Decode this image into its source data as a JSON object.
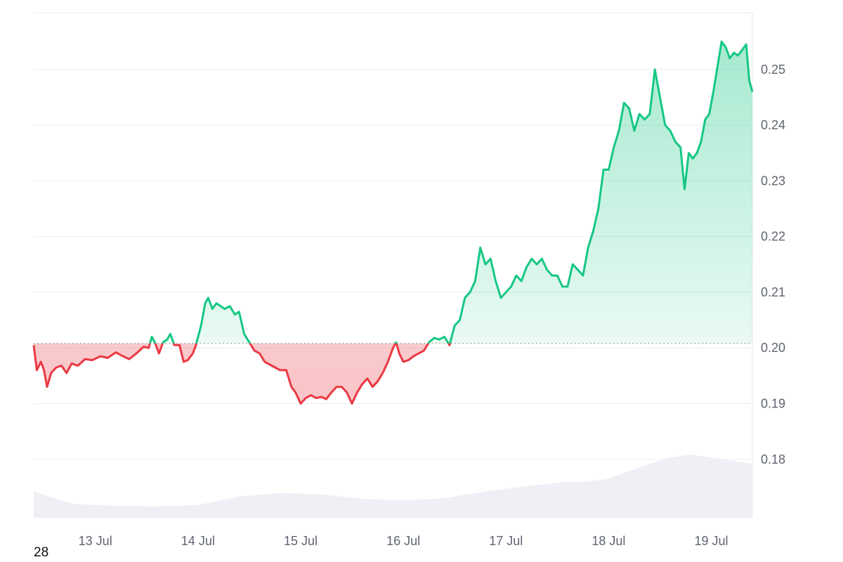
{
  "chart_data": {
    "type": "area",
    "x_ticks": [
      "13 Jul",
      "14 Jul",
      "15 Jul",
      "16 Jul",
      "17 Jul",
      "18 Jul",
      "19 Jul"
    ],
    "y_ticks": [
      "0.25",
      "0.24",
      "0.23",
      "0.22",
      "0.21",
      "0.20",
      "0.19",
      "0.18"
    ],
    "ylim": [
      0.1695,
      0.2602
    ],
    "xlim": [
      12.4,
      19.4
    ],
    "baseline": 0.2008,
    "grid": true,
    "colors": {
      "up": "#16c784",
      "down": "#ea3943",
      "volume": "#eef0f5",
      "grid": "#eceef2",
      "baseline": "#8a8f98"
    },
    "series": [
      {
        "values": [
          [
            12.4,
            0.2005
          ],
          [
            12.43,
            0.196
          ],
          [
            12.47,
            0.1975
          ],
          [
            12.5,
            0.196
          ],
          [
            12.53,
            0.193
          ],
          [
            12.57,
            0.1955
          ],
          [
            12.62,
            0.1965
          ],
          [
            12.67,
            0.1968
          ],
          [
            12.72,
            0.1955
          ],
          [
            12.77,
            0.1972
          ],
          [
            12.83,
            0.1968
          ],
          [
            12.9,
            0.198
          ],
          [
            12.97,
            0.1978
          ],
          [
            13.05,
            0.1985
          ],
          [
            13.12,
            0.1982
          ],
          [
            13.2,
            0.1992
          ],
          [
            13.27,
            0.1985
          ],
          [
            13.33,
            0.198
          ],
          [
            13.4,
            0.199
          ],
          [
            13.47,
            0.2002
          ],
          [
            13.52,
            0.2
          ],
          [
            13.55,
            0.202
          ],
          [
            13.58,
            0.201
          ],
          [
            13.62,
            0.199
          ],
          [
            13.66,
            0.201
          ],
          [
            13.7,
            0.2015
          ],
          [
            13.73,
            0.2025
          ],
          [
            13.77,
            0.2005
          ],
          [
            13.82,
            0.2005
          ],
          [
            13.86,
            0.1975
          ],
          [
            13.9,
            0.1978
          ],
          [
            13.95,
            0.199
          ],
          [
            13.98,
            0.2005
          ],
          [
            14.03,
            0.204
          ],
          [
            14.07,
            0.208
          ],
          [
            14.1,
            0.209
          ],
          [
            14.14,
            0.207
          ],
          [
            14.18,
            0.208
          ],
          [
            14.22,
            0.2075
          ],
          [
            14.26,
            0.207
          ],
          [
            14.31,
            0.2075
          ],
          [
            14.36,
            0.206
          ],
          [
            14.4,
            0.2065
          ],
          [
            14.45,
            0.2025
          ],
          [
            14.5,
            0.201
          ],
          [
            14.55,
            0.1995
          ],
          [
            14.6,
            0.199
          ],
          [
            14.65,
            0.1975
          ],
          [
            14.7,
            0.197
          ],
          [
            14.75,
            0.1965
          ],
          [
            14.8,
            0.196
          ],
          [
            14.86,
            0.196
          ],
          [
            14.91,
            0.193
          ],
          [
            14.95,
            0.192
          ],
          [
            15.0,
            0.19
          ],
          [
            15.05,
            0.191
          ],
          [
            15.1,
            0.1915
          ],
          [
            15.15,
            0.191
          ],
          [
            15.2,
            0.1912
          ],
          [
            15.25,
            0.1908
          ],
          [
            15.3,
            0.192
          ],
          [
            15.35,
            0.193
          ],
          [
            15.4,
            0.193
          ],
          [
            15.45,
            0.192
          ],
          [
            15.5,
            0.19
          ],
          [
            15.55,
            0.192
          ],
          [
            15.6,
            0.1935
          ],
          [
            15.65,
            0.1945
          ],
          [
            15.7,
            0.193
          ],
          [
            15.75,
            0.194
          ],
          [
            15.8,
            0.1955
          ],
          [
            15.85,
            0.1975
          ],
          [
            15.9,
            0.2
          ],
          [
            15.93,
            0.201
          ],
          [
            15.96,
            0.199
          ],
          [
            16.0,
            0.1975
          ],
          [
            16.05,
            0.1978
          ],
          [
            16.1,
            0.1985
          ],
          [
            16.15,
            0.199
          ],
          [
            16.2,
            0.1995
          ],
          [
            16.25,
            0.201
          ],
          [
            16.3,
            0.2018
          ],
          [
            16.35,
            0.2015
          ],
          [
            16.4,
            0.202
          ],
          [
            16.45,
            0.2005
          ],
          [
            16.5,
            0.204
          ],
          [
            16.55,
            0.205
          ],
          [
            16.6,
            0.209
          ],
          [
            16.65,
            0.21
          ],
          [
            16.7,
            0.212
          ],
          [
            16.75,
            0.218
          ],
          [
            16.8,
            0.215
          ],
          [
            16.85,
            0.216
          ],
          [
            16.9,
            0.212
          ],
          [
            16.95,
            0.209
          ],
          [
            17.0,
            0.21
          ],
          [
            17.05,
            0.211
          ],
          [
            17.1,
            0.213
          ],
          [
            17.15,
            0.212
          ],
          [
            17.2,
            0.2145
          ],
          [
            17.25,
            0.216
          ],
          [
            17.3,
            0.215
          ],
          [
            17.35,
            0.216
          ],
          [
            17.4,
            0.214
          ],
          [
            17.45,
            0.213
          ],
          [
            17.5,
            0.213
          ],
          [
            17.55,
            0.211
          ],
          [
            17.6,
            0.211
          ],
          [
            17.65,
            0.215
          ],
          [
            17.7,
            0.214
          ],
          [
            17.75,
            0.213
          ],
          [
            17.8,
            0.218
          ],
          [
            17.85,
            0.221
          ],
          [
            17.9,
            0.225
          ],
          [
            17.95,
            0.232
          ],
          [
            18.0,
            0.232
          ],
          [
            18.05,
            0.236
          ],
          [
            18.1,
            0.239
          ],
          [
            18.15,
            0.244
          ],
          [
            18.2,
            0.243
          ],
          [
            18.25,
            0.239
          ],
          [
            18.3,
            0.242
          ],
          [
            18.35,
            0.241
          ],
          [
            18.4,
            0.242
          ],
          [
            18.45,
            0.25
          ],
          [
            18.5,
            0.245
          ],
          [
            18.55,
            0.24
          ],
          [
            18.6,
            0.239
          ],
          [
            18.65,
            0.237
          ],
          [
            18.7,
            0.236
          ],
          [
            18.74,
            0.2285
          ],
          [
            18.78,
            0.235
          ],
          [
            18.82,
            0.234
          ],
          [
            18.86,
            0.235
          ],
          [
            18.9,
            0.237
          ],
          [
            18.94,
            0.241
          ],
          [
            18.98,
            0.242
          ],
          [
            19.02,
            0.246
          ],
          [
            19.06,
            0.2505
          ],
          [
            19.1,
            0.255
          ],
          [
            19.14,
            0.254
          ],
          [
            19.18,
            0.252
          ],
          [
            19.22,
            0.253
          ],
          [
            19.26,
            0.2525
          ],
          [
            19.3,
            0.2535
          ],
          [
            19.34,
            0.2545
          ],
          [
            19.37,
            0.248
          ],
          [
            19.4,
            0.246
          ]
        ]
      }
    ],
    "volume": [
      [
        12.4,
        0.35
      ],
      [
        12.55,
        0.28
      ],
      [
        12.8,
        0.18
      ],
      [
        13.2,
        0.16
      ],
      [
        13.6,
        0.15
      ],
      [
        14.0,
        0.17
      ],
      [
        14.4,
        0.28
      ],
      [
        14.8,
        0.33
      ],
      [
        15.2,
        0.31
      ],
      [
        15.6,
        0.25
      ],
      [
        16.0,
        0.23
      ],
      [
        16.4,
        0.26
      ],
      [
        16.8,
        0.35
      ],
      [
        17.2,
        0.42
      ],
      [
        17.6,
        0.48
      ],
      [
        17.8,
        0.48
      ],
      [
        18.0,
        0.52
      ],
      [
        18.2,
        0.62
      ],
      [
        18.4,
        0.72
      ],
      [
        18.6,
        0.8
      ],
      [
        18.8,
        0.84
      ],
      [
        19.0,
        0.8
      ],
      [
        19.2,
        0.76
      ],
      [
        19.4,
        0.72
      ]
    ]
  },
  "corner_label": "28"
}
